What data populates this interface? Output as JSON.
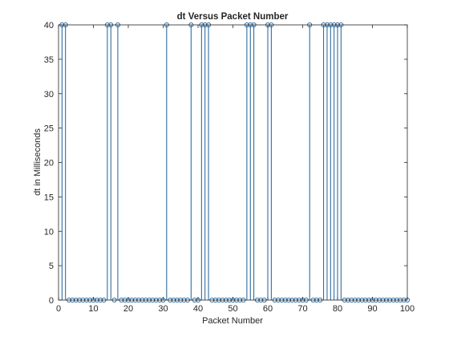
{
  "chart_data": {
    "type": "stem",
    "title": "dt Versus Packet Number",
    "xlabel": "Packet Number",
    "ylabel": "dt in Milliseconds",
    "xlim": [
      0,
      100
    ],
    "ylim": [
      0,
      40
    ],
    "xticks": [
      "0",
      "10",
      "20",
      "30",
      "40",
      "50",
      "60",
      "70",
      "80",
      "90",
      "100"
    ],
    "yticks": [
      "0",
      "5",
      "10",
      "15",
      "20",
      "25",
      "30",
      "35",
      "40"
    ],
    "grid": false,
    "colors": {
      "series": "#1f5f96",
      "axes": "#262626"
    },
    "x": [
      1,
      2,
      3,
      4,
      5,
      6,
      7,
      8,
      9,
      10,
      11,
      12,
      13,
      14,
      15,
      16,
      17,
      18,
      19,
      20,
      21,
      22,
      23,
      24,
      25,
      26,
      27,
      28,
      29,
      30,
      31,
      32,
      33,
      34,
      35,
      36,
      37,
      38,
      39,
      40,
      41,
      42,
      43,
      44,
      45,
      46,
      47,
      48,
      49,
      50,
      51,
      52,
      53,
      54,
      55,
      56,
      57,
      58,
      59,
      60,
      61,
      62,
      63,
      64,
      65,
      66,
      67,
      68,
      69,
      70,
      71,
      72,
      73,
      74,
      75,
      76,
      77,
      78,
      79,
      80,
      81,
      82,
      83,
      84,
      85,
      86,
      87,
      88,
      89,
      90,
      91,
      92,
      93,
      94,
      95,
      96,
      97,
      98,
      99,
      100
    ],
    "values": [
      40,
      40,
      0,
      0,
      0,
      0,
      0,
      0,
      0,
      0,
      0,
      0,
      0,
      40,
      40,
      0,
      40,
      0,
      0,
      0,
      0,
      0,
      0,
      0,
      0,
      0,
      0,
      0,
      0,
      0,
      40,
      0,
      0,
      0,
      0,
      0,
      0,
      40,
      0,
      0,
      40,
      40,
      40,
      0,
      0,
      0,
      0,
      0,
      0,
      0,
      0,
      0,
      0,
      40,
      40,
      40,
      0,
      0,
      0,
      40,
      40,
      0,
      0,
      0,
      0,
      0,
      0,
      0,
      0,
      0,
      0,
      40,
      0,
      0,
      0,
      40,
      40,
      40,
      40,
      40,
      40,
      0,
      0,
      0,
      0,
      0,
      0,
      0,
      0,
      0,
      0,
      0,
      0,
      0,
      0,
      0,
      0,
      0,
      0,
      0
    ]
  }
}
